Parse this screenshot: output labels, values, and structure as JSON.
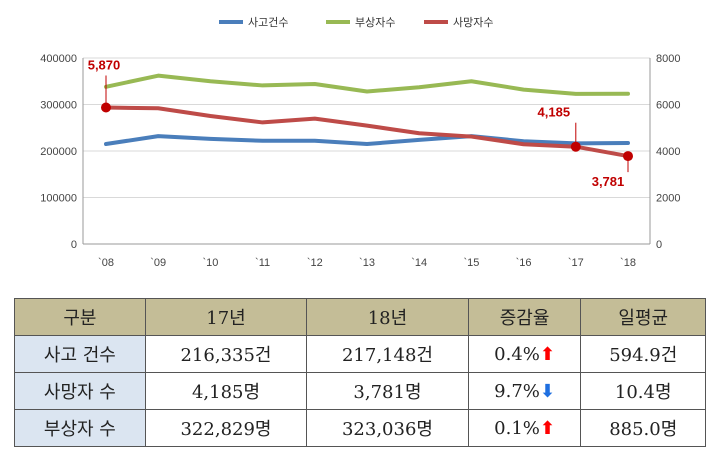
{
  "chart_data": {
    "type": "line",
    "categories": [
      "`08",
      "`09",
      "`10",
      "`11",
      "`12",
      "`13",
      "`14",
      "`15",
      "`16",
      "`17",
      "`18"
    ],
    "series": [
      {
        "name": "사고건수",
        "axis": "left",
        "color": "#4a7ebb",
        "values": [
          215000,
          232000,
          226000,
          222000,
          222000,
          215000,
          224000,
          232000,
          221000,
          216335,
          217148
        ]
      },
      {
        "name": "부상자수",
        "axis": "left",
        "color": "#98b954",
        "values": [
          338000,
          362000,
          350000,
          341000,
          344000,
          328000,
          337000,
          350000,
          332000,
          322829,
          323036
        ]
      },
      {
        "name": "사망자수",
        "axis": "right",
        "color": "#be4b48",
        "values": [
          5870,
          5838,
          5505,
          5229,
          5392,
          5092,
          4762,
          4621,
          4292,
          4185,
          3781
        ]
      }
    ],
    "y_left": {
      "min": 0,
      "max": 400000,
      "ticks": [
        "0",
        "100000",
        "200000",
        "300000",
        "400000"
      ]
    },
    "y_right": {
      "min": 0,
      "max": 8000,
      "ticks": [
        "0",
        "2000",
        "4000",
        "6000",
        "8000"
      ]
    },
    "grid": true,
    "legend_position": "top-center",
    "annotations": [
      {
        "series": "사망자수",
        "index": 0,
        "label": "5,870"
      },
      {
        "series": "사망자수",
        "index": 9,
        "label": "4,185"
      },
      {
        "series": "사망자수",
        "index": 10,
        "label": "3,781"
      }
    ]
  },
  "table": {
    "headers": [
      "구분",
      "17년",
      "18년",
      "증감율",
      "일평균"
    ],
    "rows": [
      {
        "label": "사고 건수",
        "y17": "216,335건",
        "y18": "217,148건",
        "rate": "0.4%",
        "arrow": "up",
        "daily": "594.9건"
      },
      {
        "label": "사망자 수",
        "y17": "4,185명",
        "y18": "3,781명",
        "rate": "9.7%",
        "arrow": "down",
        "daily": "10.4명"
      },
      {
        "label": "부상자 수",
        "y17": "322,829명",
        "y18": "323,036명",
        "rate": "0.1%",
        "arrow": "up",
        "daily": "885.0명"
      }
    ]
  },
  "icons": {
    "up": "up-arrow-icon",
    "down": "down-arrow-icon"
  }
}
